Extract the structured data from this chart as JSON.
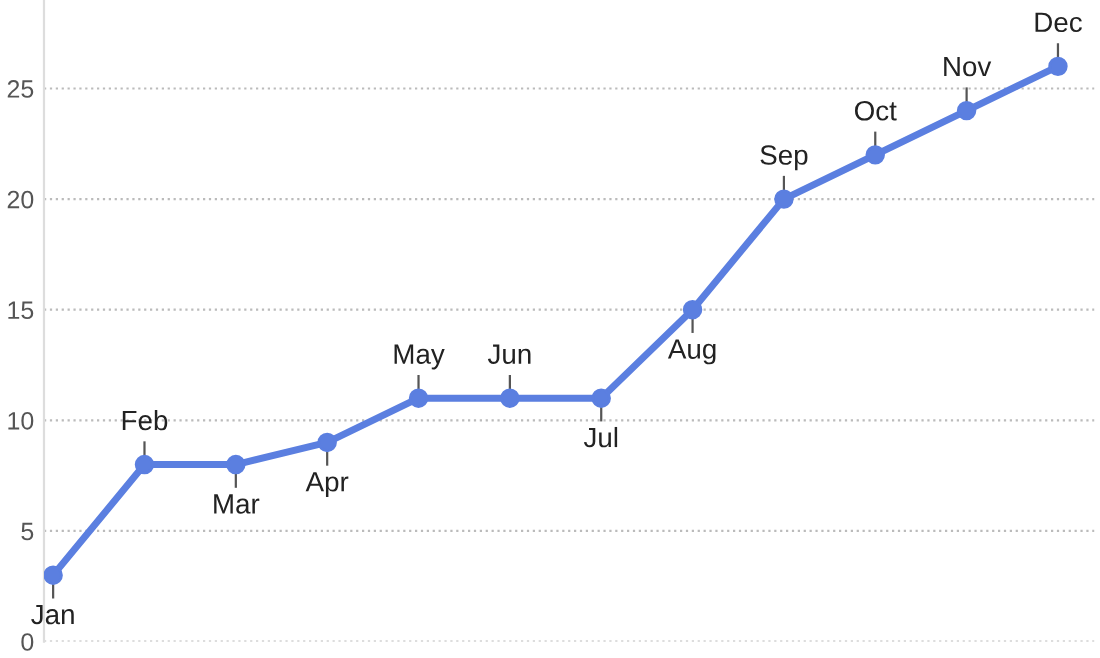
{
  "chart_data": {
    "type": "line",
    "categories": [
      "Jan",
      "Feb",
      "Mar",
      "Apr",
      "May",
      "Jun",
      "Jul",
      "Aug",
      "Sep",
      "Oct",
      "Nov",
      "Dec"
    ],
    "series": [
      {
        "color": "#5b7fe0",
        "values": [
          3,
          8,
          8,
          9,
          11,
          11,
          11,
          15,
          20,
          22,
          24,
          26
        ]
      }
    ],
    "ylim": [
      0,
      29
    ],
    "yticks": [
      0,
      5,
      10,
      15,
      20,
      25
    ],
    "grid": "y",
    "marker": "circle",
    "line_style": "solid",
    "tick_labels": "y"
  }
}
